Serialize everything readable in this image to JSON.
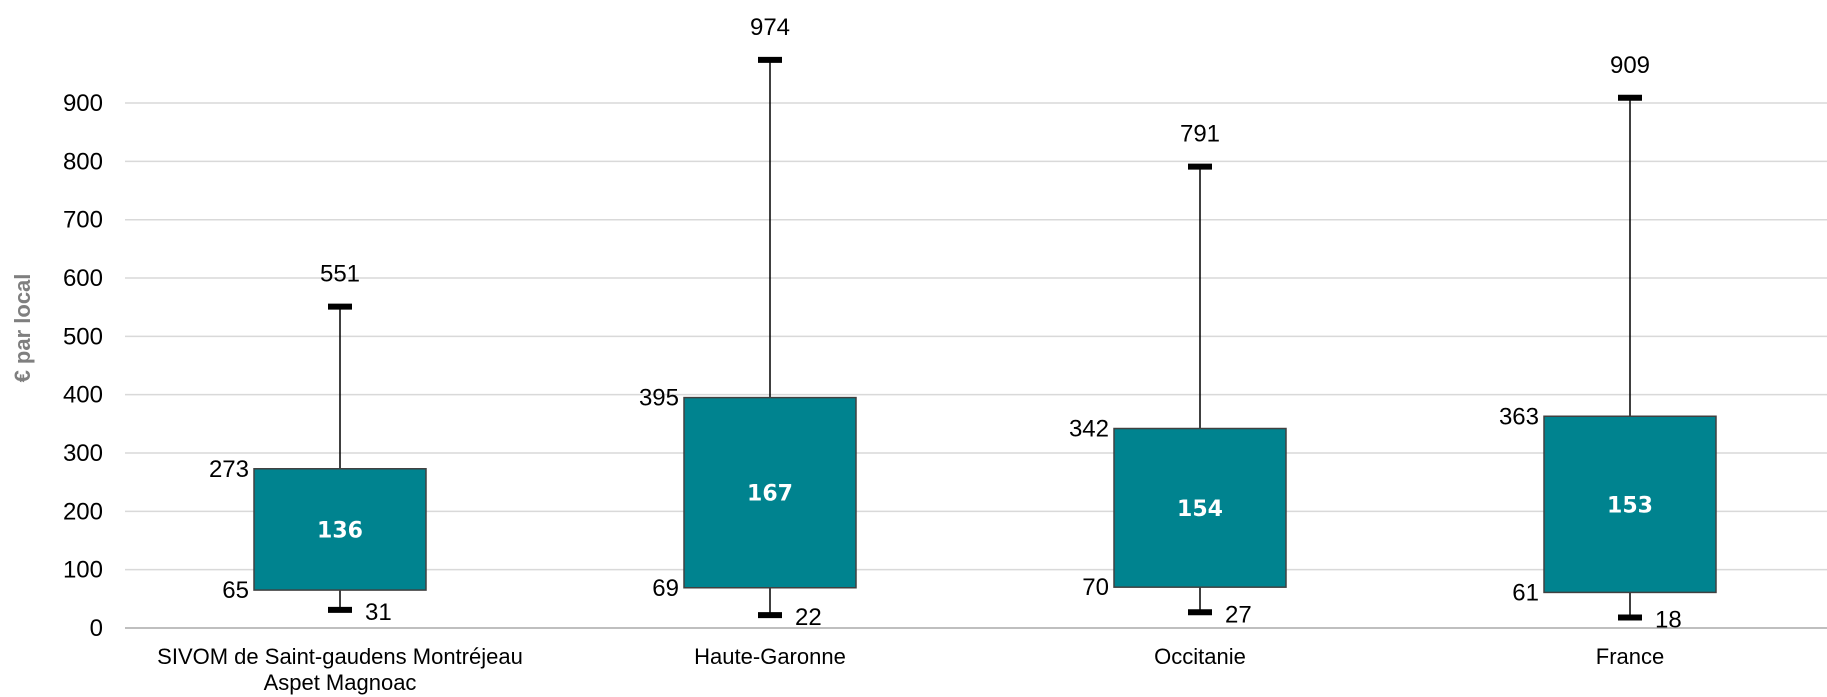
{
  "chart_data": {
    "type": "boxplot",
    "ylabel": "€ par local",
    "ylim": [
      0,
      974
    ],
    "yticks": [
      0,
      100,
      200,
      300,
      400,
      500,
      600,
      700,
      800,
      900
    ],
    "grid": true,
    "colors": {
      "box": "#00838F",
      "box_border": "#404040",
      "grid": "#d9d9d9",
      "whisker": "#000000"
    },
    "categories": [
      [
        "SIVOM de Saint-gaudens Montréjeau",
        "Aspet Magnoac"
      ],
      [
        "Haute-Garonne"
      ],
      [
        "Occitanie"
      ],
      [
        "France"
      ]
    ],
    "series": [
      {
        "category": "SIVOM de Saint-gaudens Montréjeau Aspet Magnoac",
        "min": 31,
        "q1": 65,
        "median": 136,
        "q3": 273,
        "max": 551
      },
      {
        "category": "Haute-Garonne",
        "min": 22,
        "q1": 69,
        "median": 167,
        "q3": 395,
        "max": 974
      },
      {
        "category": "Occitanie",
        "min": 27,
        "q1": 70,
        "median": 154,
        "q3": 342,
        "max": 791
      },
      {
        "category": "France",
        "min": 18,
        "q1": 61,
        "median": 153,
        "q3": 363,
        "max": 909
      }
    ]
  }
}
